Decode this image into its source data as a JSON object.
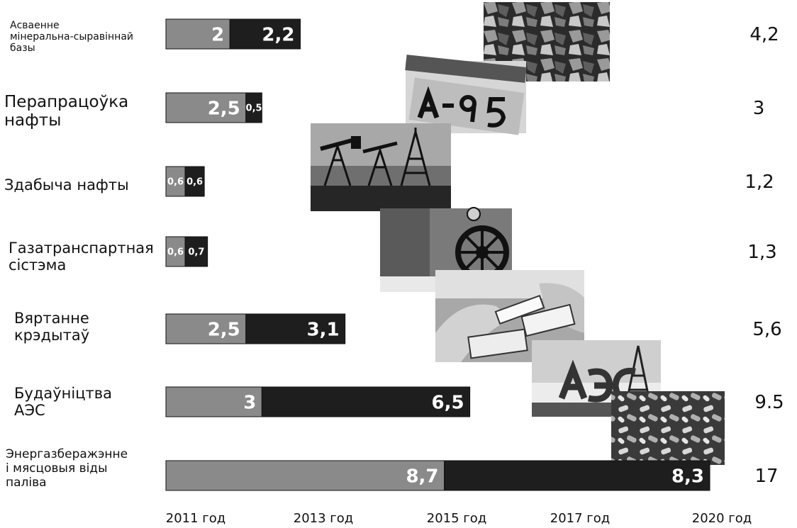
{
  "chart_data": {
    "type": "bar",
    "orientation": "horizontal",
    "stacked": true,
    "categories": [
      "Асваенне\nмінеральна-сыравіннай\nбазы",
      "Перапрацоўка\nнафты",
      "Здабыча нафты",
      "Газатранспартная\nсістэма",
      "Вяртанне\nкрэдытаў",
      "Будаўніцтва\nАЭС",
      "Энергазберажэнне\nі мясцовыя віды\nпаліва"
    ],
    "series": [
      {
        "values": [
          2,
          2.5,
          0.6,
          0.6,
          2.5,
          3,
          8.7
        ],
        "labels": [
          "2",
          "2,5",
          "0,6",
          "0,6",
          "2,5",
          "3",
          "8,7"
        ]
      },
      {
        "values": [
          2.2,
          0.5,
          0.6,
          0.7,
          3.1,
          6.5,
          8.3
        ],
        "labels": [
          "2,2",
          "0,5",
          "0,6",
          "0,7",
          "3,1",
          "6,5",
          "8,3"
        ]
      }
    ],
    "totals": [
      "4,2",
      "3",
      "1,2",
      "1,3",
      "5,6",
      "9.5",
      "17"
    ],
    "x_ticks": [
      "2011 год",
      "2013 год",
      "2015 год",
      "2017 год",
      "2020 год"
    ],
    "xlim": [
      0,
      17
    ],
    "legend": "none",
    "grid": false,
    "colors": {
      "series1": "#8a8a8a",
      "series2": "#1e1e1e"
    },
    "photos": [
      "ore-photo",
      "a95-fuel-photo",
      "oil-pump-photo",
      "gas-valve-photo",
      "money-photo",
      "npp-sign-photo",
      "wood-pellets-photo"
    ]
  }
}
